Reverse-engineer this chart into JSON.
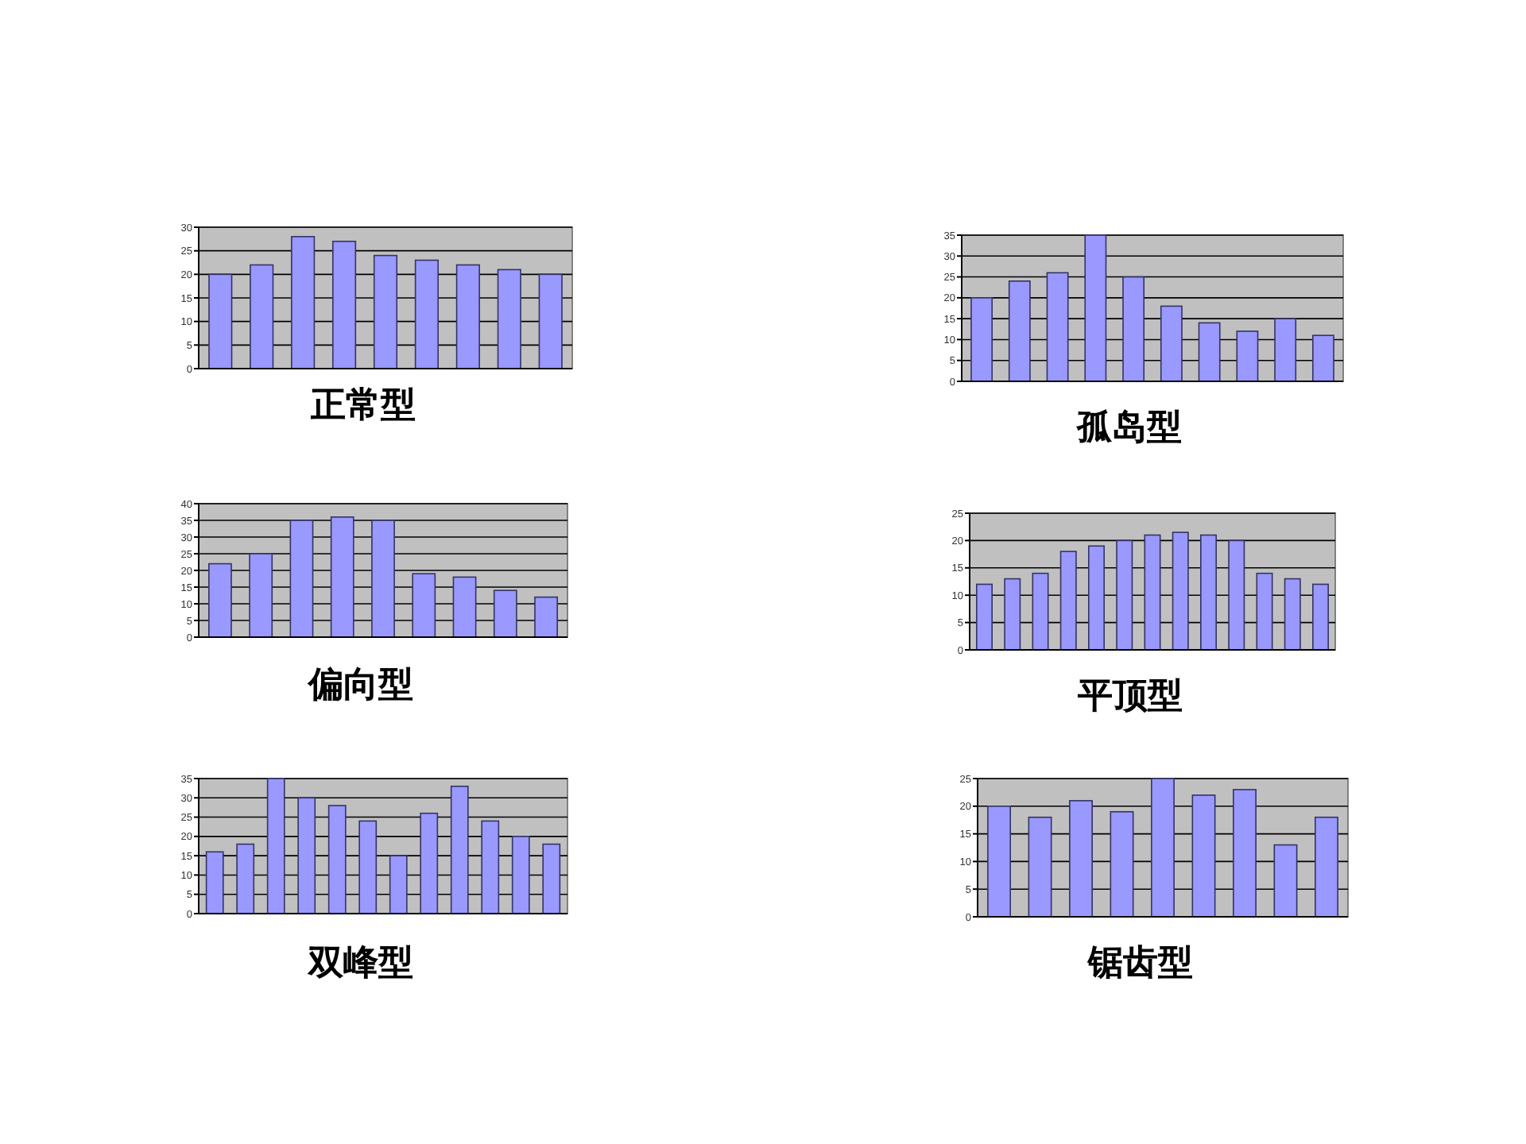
{
  "chart_data": [
    {
      "type": "bar",
      "title": "正常型",
      "categories": [
        null,
        null,
        null,
        null,
        null,
        null,
        null,
        null,
        null
      ],
      "values": [
        20,
        22,
        28,
        27,
        24,
        23,
        22,
        21,
        20
      ],
      "color": "#9999ff",
      "ylim": [
        0,
        30
      ],
      "yticks": [
        0,
        5,
        10,
        15,
        20,
        25,
        30
      ],
      "grid": "y",
      "tick_labels": "y"
    },
    {
      "type": "bar",
      "title": "孤岛型",
      "categories": [
        null,
        null,
        null,
        null,
        null,
        null,
        null,
        null,
        null,
        null
      ],
      "values": [
        20,
        24,
        26,
        35,
        25,
        18,
        14,
        12,
        15,
        11
      ],
      "color": "#9999ff",
      "ylim": [
        0,
        35
      ],
      "yticks": [
        0,
        5,
        10,
        15,
        20,
        25,
        30,
        35
      ],
      "grid": "y",
      "tick_labels": "y"
    },
    {
      "type": "bar",
      "title": "偏向型",
      "categories": [
        null,
        null,
        null,
        null,
        null,
        null,
        null,
        null,
        null
      ],
      "values": [
        22,
        25,
        35,
        36,
        35,
        19,
        18,
        14,
        12
      ],
      "color": "#9999ff",
      "ylim": [
        0,
        40
      ],
      "yticks": [
        0,
        5,
        10,
        15,
        20,
        25,
        30,
        35,
        40
      ],
      "grid": "y",
      "tick_labels": "y"
    },
    {
      "type": "bar",
      "title": "平顶型",
      "categories": [
        null,
        null,
        null,
        null,
        null,
        null,
        null,
        null,
        null,
        null,
        null,
        null,
        null
      ],
      "values": [
        12,
        13,
        14,
        18,
        19,
        20,
        21,
        21.5,
        21,
        20,
        14,
        13,
        12
      ],
      "color": "#9999ff",
      "ylim": [
        0,
        25
      ],
      "yticks": [
        0,
        5,
        10,
        15,
        20,
        25
      ],
      "grid": "y",
      "tick_labels": "y"
    },
    {
      "type": "bar",
      "title": "双峰型",
      "categories": [
        null,
        null,
        null,
        null,
        null,
        null,
        null,
        null,
        null,
        null,
        null,
        null
      ],
      "values": [
        16,
        18,
        35,
        30,
        28,
        24,
        15,
        26,
        33,
        24,
        20,
        18
      ],
      "color": "#9999ff",
      "ylim": [
        0,
        35
      ],
      "yticks": [
        0,
        5,
        10,
        15,
        20,
        25,
        30,
        35
      ],
      "grid": "y",
      "tick_labels": "y"
    },
    {
      "type": "bar",
      "title": "锯齿型",
      "categories": [
        null,
        null,
        null,
        null,
        null,
        null,
        null,
        null,
        null
      ],
      "values": [
        20,
        18,
        21,
        19,
        25,
        22,
        23,
        13,
        18
      ],
      "color": "#9999ff",
      "ylim": [
        0,
        25
      ],
      "yticks": [
        0,
        5,
        10,
        15,
        20,
        25
      ],
      "grid": "y",
      "tick_labels": "y"
    }
  ]
}
